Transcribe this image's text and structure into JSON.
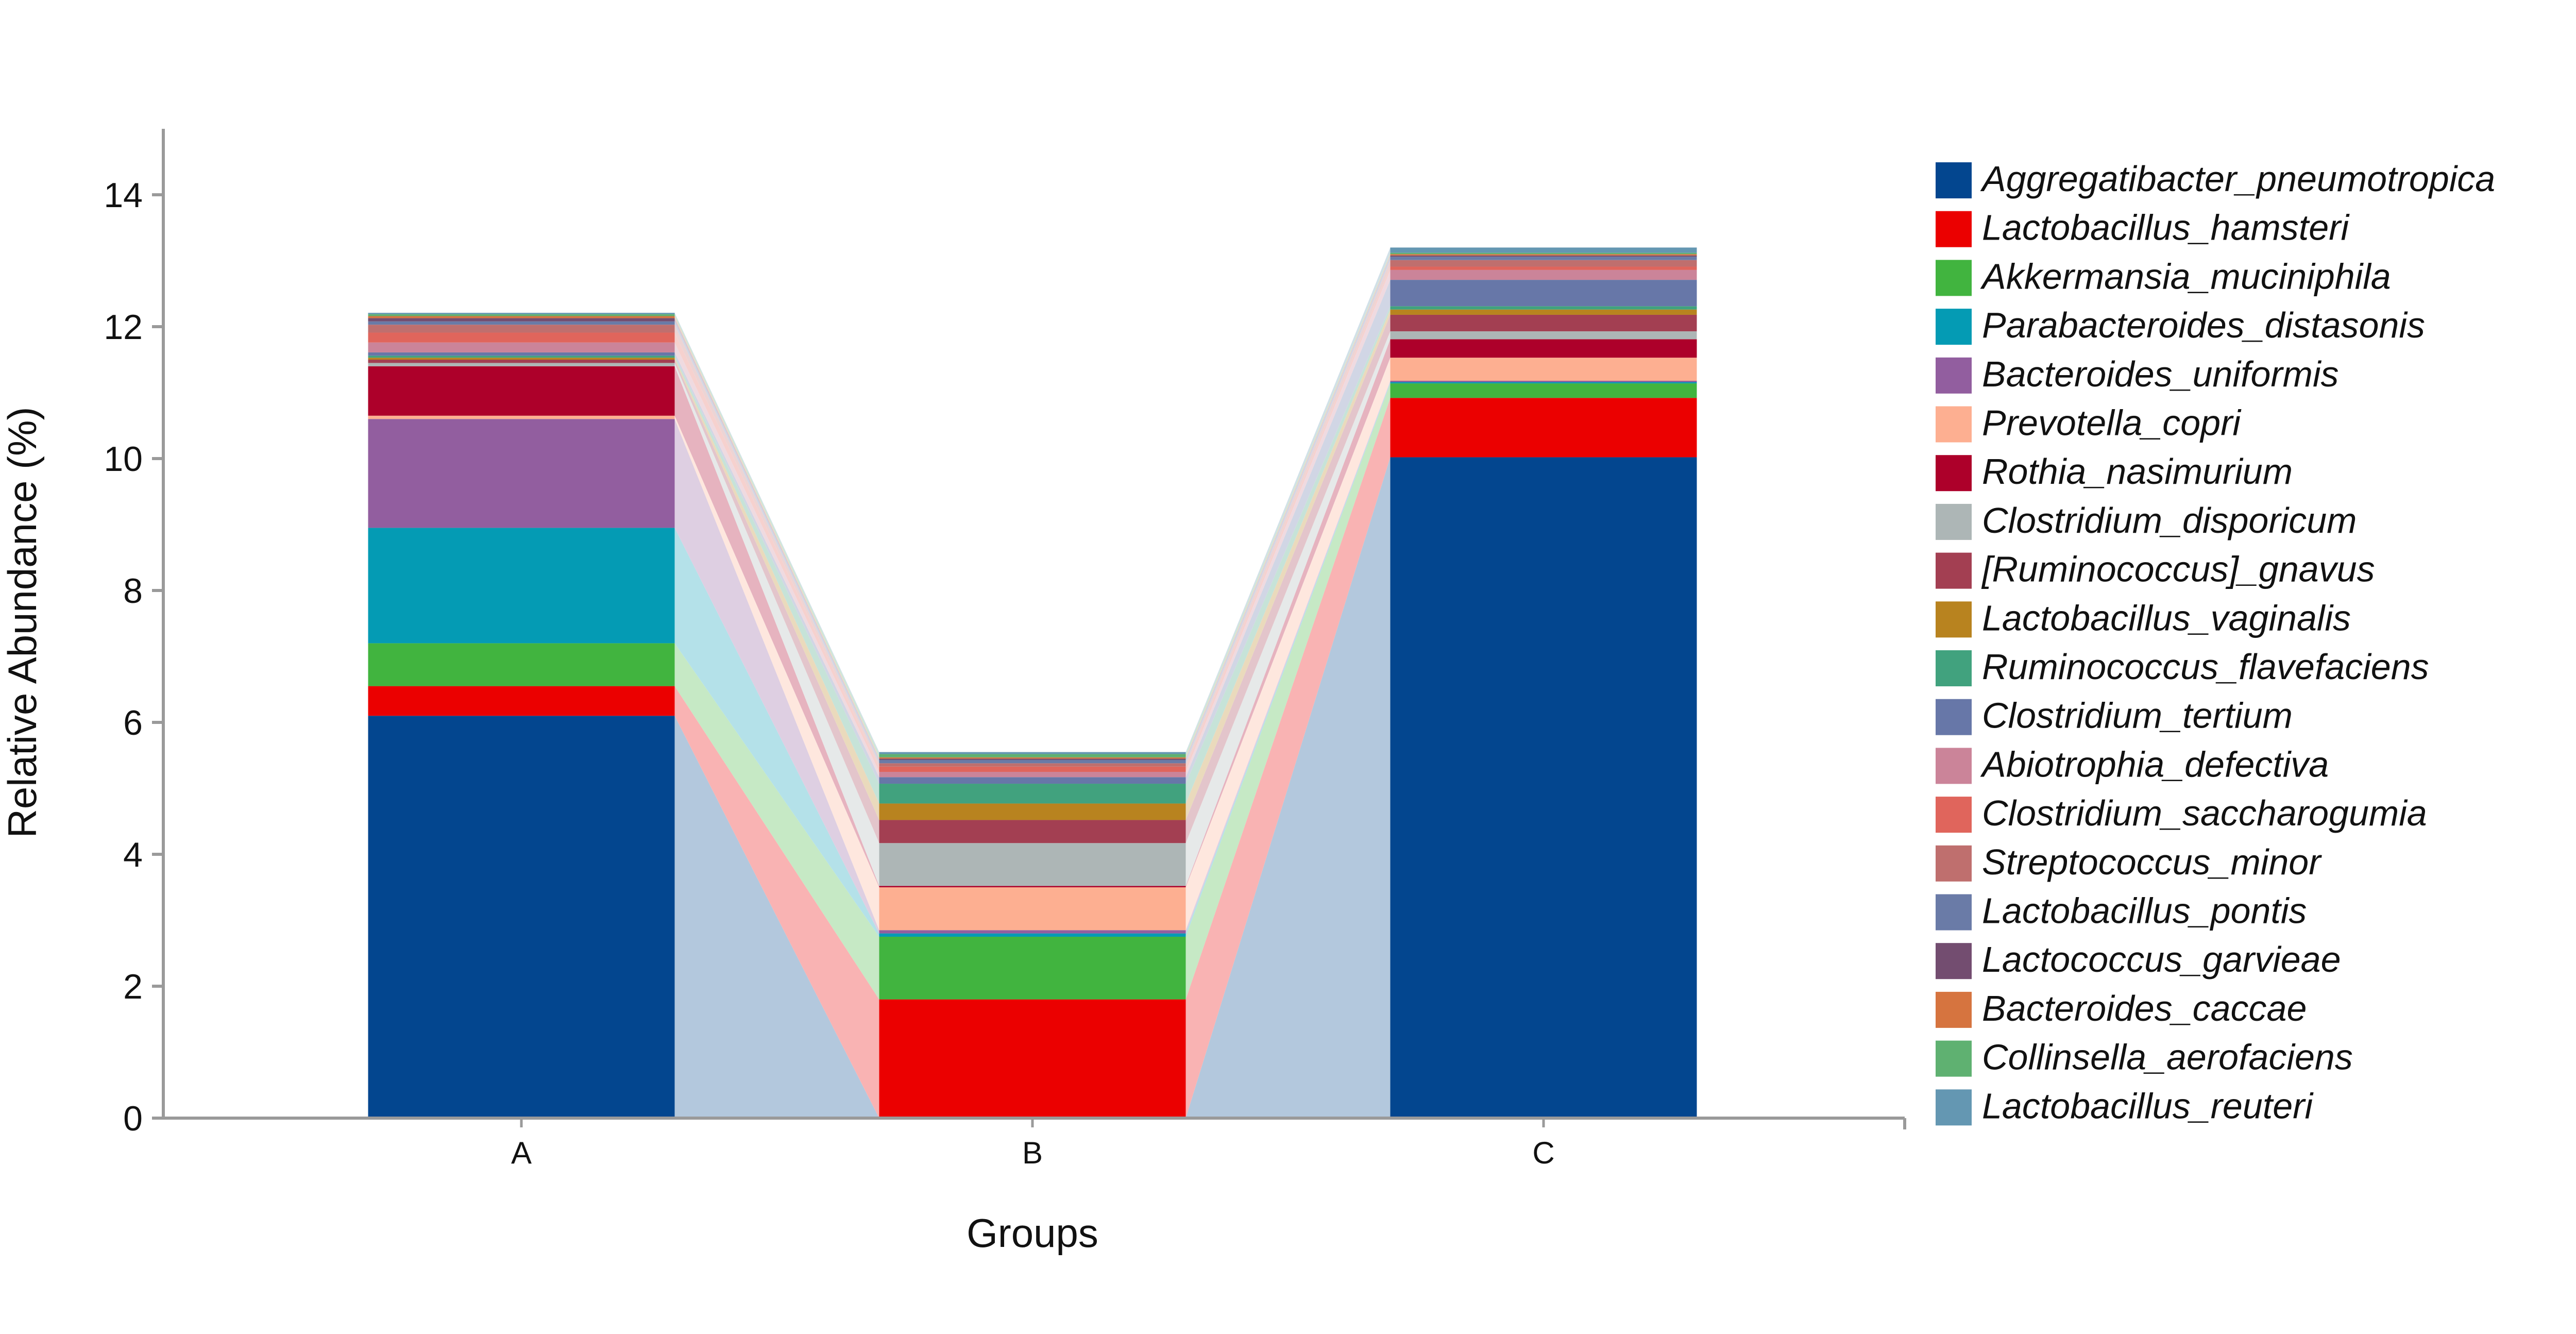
{
  "chart_data": {
    "type": "bar",
    "stacked": true,
    "connect_stacks": true,
    "categories": [
      "A",
      "B",
      "C"
    ],
    "xlabel": "Groups",
    "ylabel": "Relative Abundance (%)",
    "ylim": [
      0,
      15
    ],
    "yticks": [
      0,
      2,
      4,
      6,
      8,
      10,
      12,
      14
    ],
    "grid": false,
    "legend_position": "right",
    "series": [
      {
        "name": "Aggregatibacter_pneumotropica",
        "color": "#03468F",
        "values": [
          6.1,
          0.0,
          10.02
        ]
      },
      {
        "name": "Lactobacillus_hamsteri",
        "color": "#EB0000",
        "values": [
          0.45,
          1.8,
          0.9
        ]
      },
      {
        "name": "Akkermansia_muciniphila",
        "color": "#41B43F",
        "values": [
          0.65,
          0.95,
          0.22
        ]
      },
      {
        "name": "Parabacteroides_distasonis",
        "color": "#049BB4",
        "values": [
          1.75,
          0.05,
          0.02
        ]
      },
      {
        "name": "Bacteroides_uniformis",
        "color": "#925E9F",
        "values": [
          1.65,
          0.05,
          0.02
        ]
      },
      {
        "name": "Prevotella_copri",
        "color": "#FDAF91",
        "values": [
          0.05,
          0.65,
          0.35
        ]
      },
      {
        "name": "Rothia_nasimurium",
        "color": "#AD002A",
        "values": [
          0.75,
          0.02,
          0.28
        ]
      },
      {
        "name": "Clostridium_disporicum",
        "color": "#ADB6B6",
        "values": [
          0.05,
          0.65,
          0.12
        ]
      },
      {
        "name": "[Ruminococcus]_gnavus",
        "color": "#A33F52",
        "values": [
          0.05,
          0.35,
          0.25
        ]
      },
      {
        "name": "Lactobacillus_vaginalis",
        "color": "#B8831F",
        "values": [
          0.03,
          0.25,
          0.08
        ]
      },
      {
        "name": "Ruminococcus_flavefaciens",
        "color": "#41A27E",
        "values": [
          0.03,
          0.3,
          0.05
        ]
      },
      {
        "name": "Clostridium_tertium",
        "color": "#6777A8",
        "values": [
          0.05,
          0.1,
          0.4
        ]
      },
      {
        "name": "Abiotrophia_defectiva",
        "color": "#CB8499",
        "values": [
          0.15,
          0.08,
          0.15
        ]
      },
      {
        "name": "Clostridium_saccharogumia",
        "color": "#E0655C",
        "values": [
          0.15,
          0.08,
          0.05
        ]
      },
      {
        "name": "Streptococcus_minor",
        "color": "#BF6F6E",
        "values": [
          0.12,
          0.05,
          0.1
        ]
      },
      {
        "name": "Lactobacillus_pontis",
        "color": "#6A7BA7",
        "values": [
          0.05,
          0.05,
          0.05
        ]
      },
      {
        "name": "Lactococcus_garvieae",
        "color": "#734D70",
        "values": [
          0.05,
          0.02,
          0.02
        ]
      },
      {
        "name": "Bacteroides_caccae",
        "color": "#D6743F",
        "values": [
          0.03,
          0.02,
          0.02
        ]
      },
      {
        "name": "Collinsella_aerofaciens",
        "color": "#5FB171",
        "values": [
          0.03,
          0.05,
          0.02
        ]
      },
      {
        "name": "Lactobacillus_reuteri",
        "color": "#6497B2",
        "values": [
          0.02,
          0.03,
          0.08
        ]
      }
    ]
  }
}
